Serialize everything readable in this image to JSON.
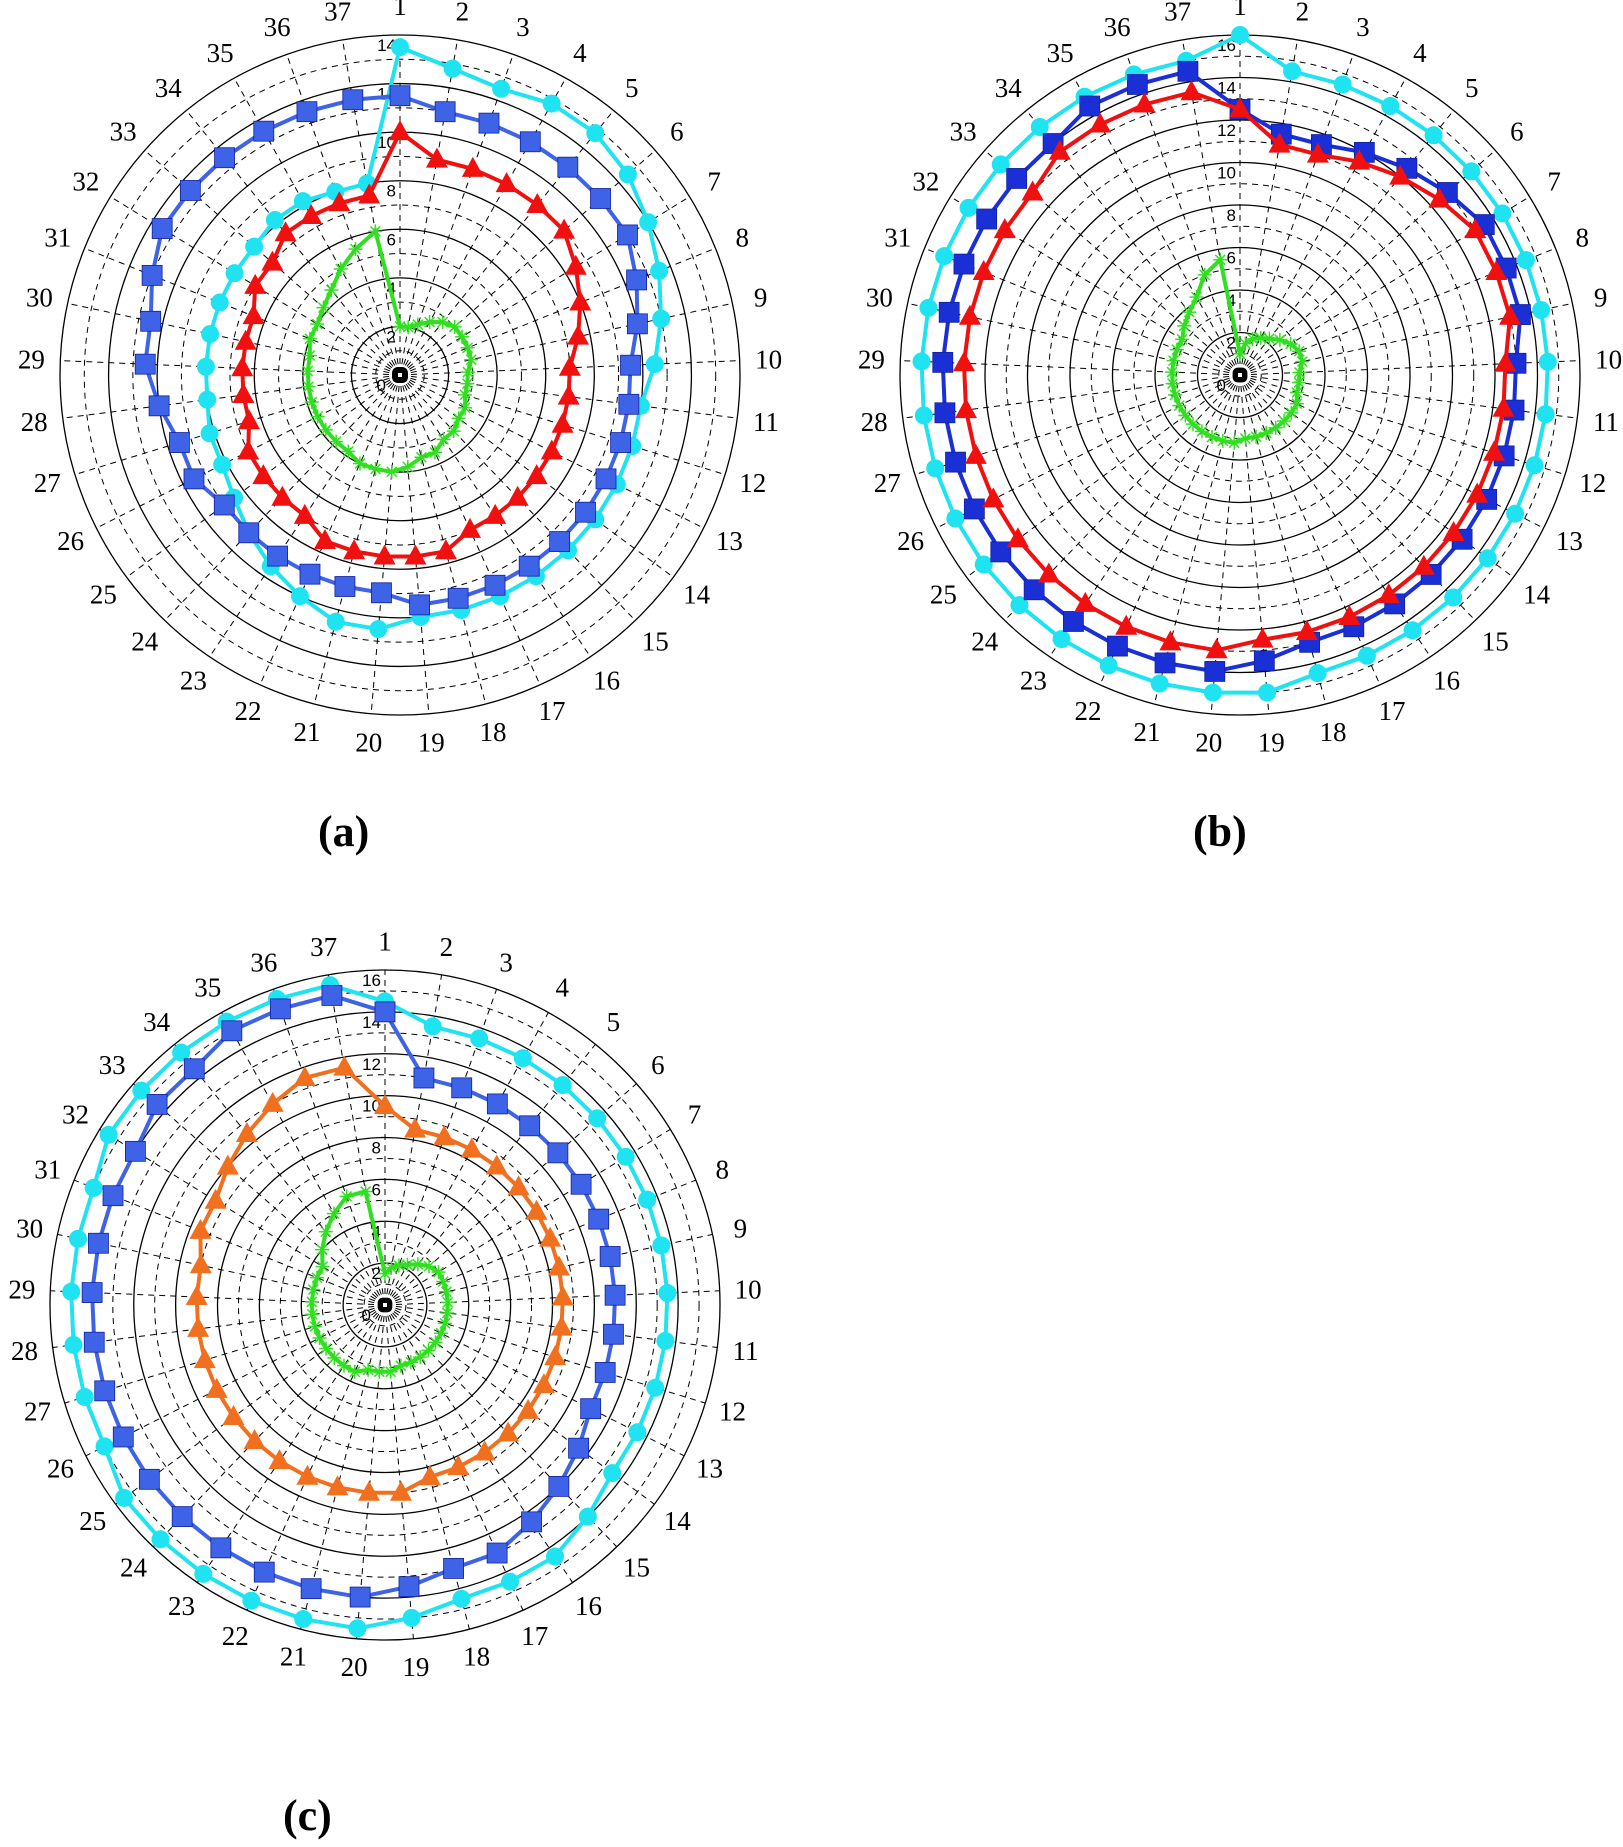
{
  "figure": {
    "captions": [
      "(a)",
      "(b)",
      "(c)"
    ]
  },
  "colors": {
    "cyan": "#1fe3f0",
    "blue": "#1b2fd6",
    "blue_light": "#3f63e6",
    "red": "#f01010",
    "orange": "#f07020",
    "green": "#30e020",
    "grid": "#000000"
  },
  "chart_data": [
    {
      "type": "radar",
      "panel": "(a)",
      "spokes": [
        "1",
        "2",
        "3",
        "4",
        "5",
        "6",
        "7",
        "8",
        "9",
        "10",
        "11",
        "12",
        "13",
        "14",
        "15",
        "16",
        "17",
        "18",
        "19",
        "20",
        "21",
        "22",
        "23",
        "24",
        "25",
        "26",
        "27",
        "28",
        "29",
        "30",
        "31",
        "32",
        "33",
        "34",
        "35",
        "36",
        "37"
      ],
      "radial_ticks": [
        "0",
        "2",
        "4",
        "6",
        "8",
        "10",
        "12",
        "14"
      ],
      "rmax": 14,
      "grid": true,
      "series": [
        {
          "marker": "circle",
          "color": "cyan",
          "values": [
            13.5,
            12.8,
            12.5,
            12.8,
            12.8,
            12.5,
            12.0,
            11.5,
            11.0,
            10.5,
            10.0,
            10.0,
            10.0,
            10.0,
            10.0,
            10.0,
            10.0,
            10.0,
            10.0,
            10.5,
            10.5,
            10.0,
            9.5,
            9.0,
            8.5,
            8.2,
            8.2,
            8.0,
            8.0,
            8.0,
            8.0,
            8.0,
            8.0,
            8.2,
            8.2,
            8.0,
            8.0
          ]
        },
        {
          "marker": "square",
          "color": "blue_light",
          "values": [
            11.5,
            11.0,
            11.0,
            11.0,
            11.0,
            11.0,
            11.0,
            10.5,
            10.0,
            9.5,
            9.5,
            9.5,
            9.5,
            9.5,
            9.5,
            9.5,
            9.5,
            9.5,
            9.5,
            9.0,
            9.0,
            9.0,
            9.0,
            9.0,
            9.0,
            9.5,
            9.5,
            10.0,
            10.5,
            10.5,
            11.0,
            11.5,
            11.5,
            11.5,
            11.5,
            11.5,
            11.5
          ]
        },
        {
          "marker": "triangle",
          "color": "red",
          "values": [
            10.0,
            9.0,
            9.0,
            9.0,
            9.0,
            9.0,
            8.5,
            8.0,
            7.5,
            7.0,
            7.0,
            7.0,
            7.0,
            7.0,
            7.0,
            7.0,
            7.0,
            7.5,
            7.5,
            7.5,
            7.5,
            7.5,
            7.0,
            7.0,
            7.0,
            7.0,
            6.5,
            6.5,
            6.5,
            6.5,
            6.5,
            7.0,
            7.0,
            7.5,
            7.5,
            7.5,
            7.5
          ]
        },
        {
          "marker": "star",
          "color": "green",
          "values": [
            2.0,
            2.0,
            2.2,
            2.5,
            2.8,
            3.0,
            3.0,
            3.0,
            3.0,
            2.8,
            2.8,
            2.8,
            3.0,
            3.0,
            3.2,
            3.2,
            3.5,
            3.5,
            3.8,
            4.0,
            4.0,
            4.0,
            3.8,
            3.8,
            3.8,
            3.8,
            3.8,
            3.8,
            3.8,
            3.8,
            4.0,
            4.0,
            4.2,
            4.5,
            5.0,
            5.5,
            6.0
          ]
        },
        {
          "marker": "square-small",
          "color": "black",
          "values": [
            0.2,
            0.2,
            0.2,
            0.2,
            0.2,
            0.2,
            0.2,
            0.2,
            0.2,
            0.2,
            0.2,
            0.2,
            0.2,
            0.2,
            0.2,
            0.2,
            0.2,
            0.2,
            0.2,
            0.2,
            0.2,
            0.2,
            0.2,
            0.2,
            0.2,
            0.2,
            0.2,
            0.2,
            0.2,
            0.2,
            0.2,
            0.2,
            0.2,
            0.2,
            0.2,
            0.2,
            0.2
          ]
        }
      ]
    },
    {
      "type": "radar",
      "panel": "(b)",
      "spokes": [
        "1",
        "2",
        "3",
        "4",
        "5",
        "6",
        "7",
        "8",
        "9",
        "10",
        "11",
        "12",
        "13",
        "14",
        "15",
        "16",
        "17",
        "18",
        "19",
        "20",
        "21",
        "22",
        "23",
        "24",
        "25",
        "26",
        "27",
        "28",
        "29",
        "30",
        "31",
        "32",
        "33",
        "34",
        "35",
        "36",
        "37"
      ],
      "radial_ticks": [
        "0",
        "2",
        "4",
        "6",
        "8",
        "10",
        "12",
        "14",
        "16"
      ],
      "rmax": 16,
      "grid": true,
      "series": [
        {
          "marker": "circle",
          "color": "cyan",
          "values": [
            16.0,
            14.5,
            14.5,
            14.5,
            14.5,
            14.5,
            14.5,
            14.5,
            14.5,
            14.5,
            14.5,
            14.5,
            14.5,
            14.5,
            14.5,
            14.5,
            14.5,
            14.5,
            15.0,
            15.0,
            15.0,
            15.0,
            15.0,
            15.0,
            15.0,
            15.0,
            15.0,
            15.0,
            15.0,
            15.0,
            15.0,
            15.0,
            15.0,
            15.0,
            15.0,
            15.0,
            15.0
          ]
        },
        {
          "marker": "square",
          "color": "blue",
          "values": [
            12.5,
            11.5,
            11.5,
            12.0,
            12.5,
            13.0,
            13.5,
            13.5,
            13.5,
            13.0,
            13.0,
            13.0,
            13.0,
            13.0,
            13.0,
            13.0,
            13.0,
            13.0,
            13.5,
            14.0,
            14.0,
            14.0,
            14.0,
            14.0,
            14.0,
            14.0,
            14.0,
            14.0,
            14.0,
            14.0,
            14.0,
            14.0,
            14.0,
            14.0,
            14.5,
            14.5,
            14.5
          ]
        },
        {
          "marker": "triangle",
          "color": "red",
          "values": [
            12.5,
            11.0,
            11.0,
            11.5,
            12.0,
            12.5,
            13.0,
            13.0,
            13.0,
            12.5,
            12.5,
            12.5,
            12.5,
            12.5,
            12.5,
            12.5,
            12.5,
            12.5,
            12.5,
            13.0,
            13.0,
            13.0,
            13.0,
            13.0,
            13.0,
            13.0,
            13.0,
            13.0,
            13.0,
            13.0,
            13.0,
            13.0,
            13.0,
            13.5,
            13.5,
            13.5,
            13.5
          ]
        },
        {
          "marker": "star",
          "color": "green",
          "values": [
            1.0,
            1.5,
            1.8,
            2.0,
            2.2,
            2.5,
            2.8,
            3.0,
            3.0,
            2.8,
            2.8,
            2.8,
            3.0,
            3.0,
            3.0,
            3.0,
            3.0,
            3.0,
            3.0,
            3.2,
            3.2,
            3.2,
            3.2,
            3.2,
            3.2,
            3.2,
            3.2,
            3.2,
            3.2,
            3.2,
            3.2,
            3.2,
            3.5,
            3.8,
            4.2,
            5.0,
            5.5
          ]
        },
        {
          "marker": "square-small",
          "color": "black",
          "values": [
            0.2,
            0.2,
            0.2,
            0.2,
            0.2,
            0.2,
            0.2,
            0.2,
            0.2,
            0.2,
            0.2,
            0.2,
            0.2,
            0.2,
            0.2,
            0.2,
            0.2,
            0.2,
            0.2,
            0.2,
            0.2,
            0.2,
            0.2,
            0.2,
            0.2,
            0.2,
            0.2,
            0.2,
            0.2,
            0.2,
            0.2,
            0.2,
            0.2,
            0.2,
            0.2,
            0.2,
            0.2
          ]
        }
      ]
    },
    {
      "type": "radar",
      "panel": "(c)",
      "spokes": [
        "1",
        "2",
        "3",
        "4",
        "5",
        "6",
        "7",
        "8",
        "9",
        "10",
        "11",
        "12",
        "13",
        "14",
        "15",
        "16",
        "17",
        "18",
        "19",
        "20",
        "21",
        "22",
        "23",
        "24",
        "25",
        "26",
        "27",
        "28",
        "29",
        "30",
        "31",
        "32",
        "33",
        "34",
        "35",
        "36",
        "37"
      ],
      "radial_ticks": [
        "0",
        "2",
        "4",
        "6",
        "8",
        "10",
        "12",
        "14",
        "16"
      ],
      "rmax": 16,
      "grid": true,
      "series": [
        {
          "marker": "circle",
          "color": "cyan",
          "values": [
            14.5,
            13.5,
            13.5,
            13.5,
            13.5,
            13.5,
            13.5,
            13.5,
            13.5,
            13.5,
            13.5,
            13.5,
            13.5,
            13.5,
            14.0,
            14.5,
            14.5,
            14.5,
            15.0,
            15.5,
            15.5,
            15.5,
            15.5,
            15.5,
            15.5,
            15.0,
            15.0,
            15.0,
            15.0,
            15.0,
            15.0,
            15.5,
            15.5,
            15.5,
            15.5,
            15.5,
            15.5
          ]
        },
        {
          "marker": "square",
          "color": "blue_light",
          "values": [
            14.0,
            11.0,
            11.0,
            11.0,
            11.0,
            11.0,
            11.0,
            11.0,
            11.0,
            11.0,
            11.0,
            11.0,
            11.0,
            11.5,
            12.0,
            12.5,
            13.0,
            13.0,
            13.5,
            14.0,
            14.0,
            14.0,
            14.0,
            14.0,
            14.0,
            14.0,
            14.0,
            14.0,
            14.0,
            14.0,
            14.0,
            14.0,
            14.5,
            14.5,
            15.0,
            15.0,
            15.0
          ]
        },
        {
          "marker": "triangle",
          "color": "orange",
          "values": [
            9.5,
            8.5,
            8.5,
            8.5,
            8.5,
            8.5,
            8.5,
            8.5,
            8.5,
            8.5,
            8.5,
            8.5,
            8.5,
            8.5,
            8.5,
            8.5,
            8.5,
            8.5,
            9.0,
            9.0,
            9.0,
            9.0,
            9.0,
            9.0,
            9.0,
            9.0,
            9.0,
            9.0,
            9.0,
            9.0,
            9.5,
            9.5,
            10.0,
            10.5,
            11.0,
            11.5,
            11.5
          ]
        },
        {
          "marker": "star",
          "color": "green",
          "values": [
            1.5,
            1.8,
            2.0,
            2.2,
            2.5,
            2.8,
            3.0,
            3.0,
            3.0,
            3.0,
            3.0,
            3.0,
            3.0,
            3.0,
            3.0,
            3.0,
            3.0,
            3.0,
            3.2,
            3.2,
            3.2,
            3.5,
            3.5,
            3.5,
            3.5,
            3.5,
            3.5,
            3.5,
            3.5,
            3.5,
            3.5,
            3.5,
            4.0,
            4.5,
            5.0,
            5.5,
            5.5
          ]
        },
        {
          "marker": "square-small",
          "color": "black",
          "values": [
            0.2,
            0.2,
            0.2,
            0.2,
            0.2,
            0.2,
            0.2,
            0.2,
            0.2,
            0.2,
            0.2,
            0.2,
            0.2,
            0.2,
            0.2,
            0.2,
            0.2,
            0.2,
            0.2,
            0.2,
            0.2,
            0.2,
            0.2,
            0.2,
            0.2,
            0.2,
            0.2,
            0.2,
            0.2,
            0.2,
            0.2,
            0.2,
            0.2,
            0.2,
            0.2,
            0.2,
            0.2
          ]
        }
      ]
    }
  ]
}
